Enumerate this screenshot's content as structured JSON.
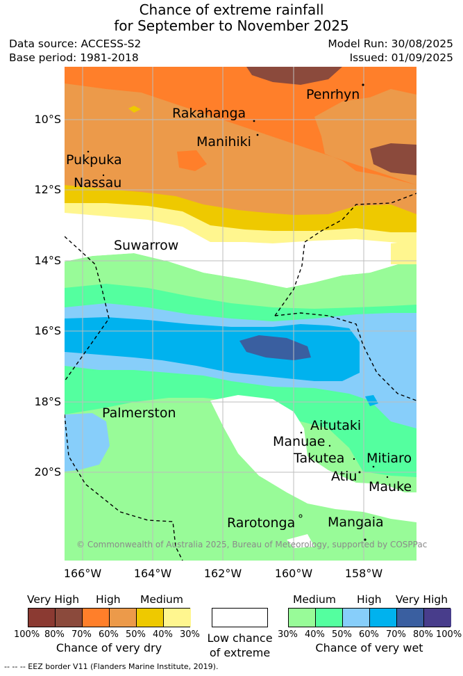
{
  "title_line1": "Chance of extreme rainfall",
  "title_line2": "for September to November 2025",
  "data_source": "Data source: ACCESS-S2",
  "base_period": "Base period: 1981-2018",
  "model_run": "Model Run: 30/08/2025",
  "issued": "Issued: 01/09/2025",
  "lat_ticks": [
    "10°S",
    "12°S",
    "14°S",
    "16°S",
    "18°S",
    "20°S"
  ],
  "lon_ticks": [
    "166°W",
    "164°W",
    "162°W",
    "160°W",
    "158°W"
  ],
  "places": [
    "Penrhyn",
    "Rakahanga",
    "Manihiki",
    "Pukpuka",
    "Nassau",
    "Suwarrow",
    "Palmerston",
    "Aitutaki",
    "Manuae",
    "Takutea",
    "Mitiaro",
    "Atiu",
    "Mauke",
    "Rarotonga",
    "Mangaia"
  ],
  "copyright": "© Commonwealth of Australia 2025, Bureau of Meteorology, supported by COSPPac",
  "legend": {
    "dry": {
      "headers": [
        "Very High",
        "High",
        "Medium"
      ],
      "percents": [
        "100%",
        "80%",
        "70%",
        "60%",
        "50%",
        "40%",
        "30%"
      ],
      "caption": "Chance of very dry",
      "colors": [
        "#8b3a32",
        "#8b4a3c",
        "#ff7f2a",
        "#ec9a4a",
        "#eec900",
        "#fff68f"
      ]
    },
    "neutral": {
      "caption_line1": "Low chance",
      "caption_line2": "of extreme",
      "color": "#ffffff"
    },
    "wet": {
      "headers": [
        "Medium",
        "High",
        "Very High"
      ],
      "percents": [
        "30%",
        "40%",
        "50%",
        "60%",
        "70%",
        "80%",
        "100%"
      ],
      "caption": "Chance of very wet",
      "colors": [
        "#98fb98",
        "#54ff9f",
        "#87cefa",
        "#00b2ee",
        "#3a5fa0",
        "#483d8b"
      ]
    }
  },
  "footnote": "--  --  -- EEZ border V11 (Flanders Marine Institute, 2019)."
}
